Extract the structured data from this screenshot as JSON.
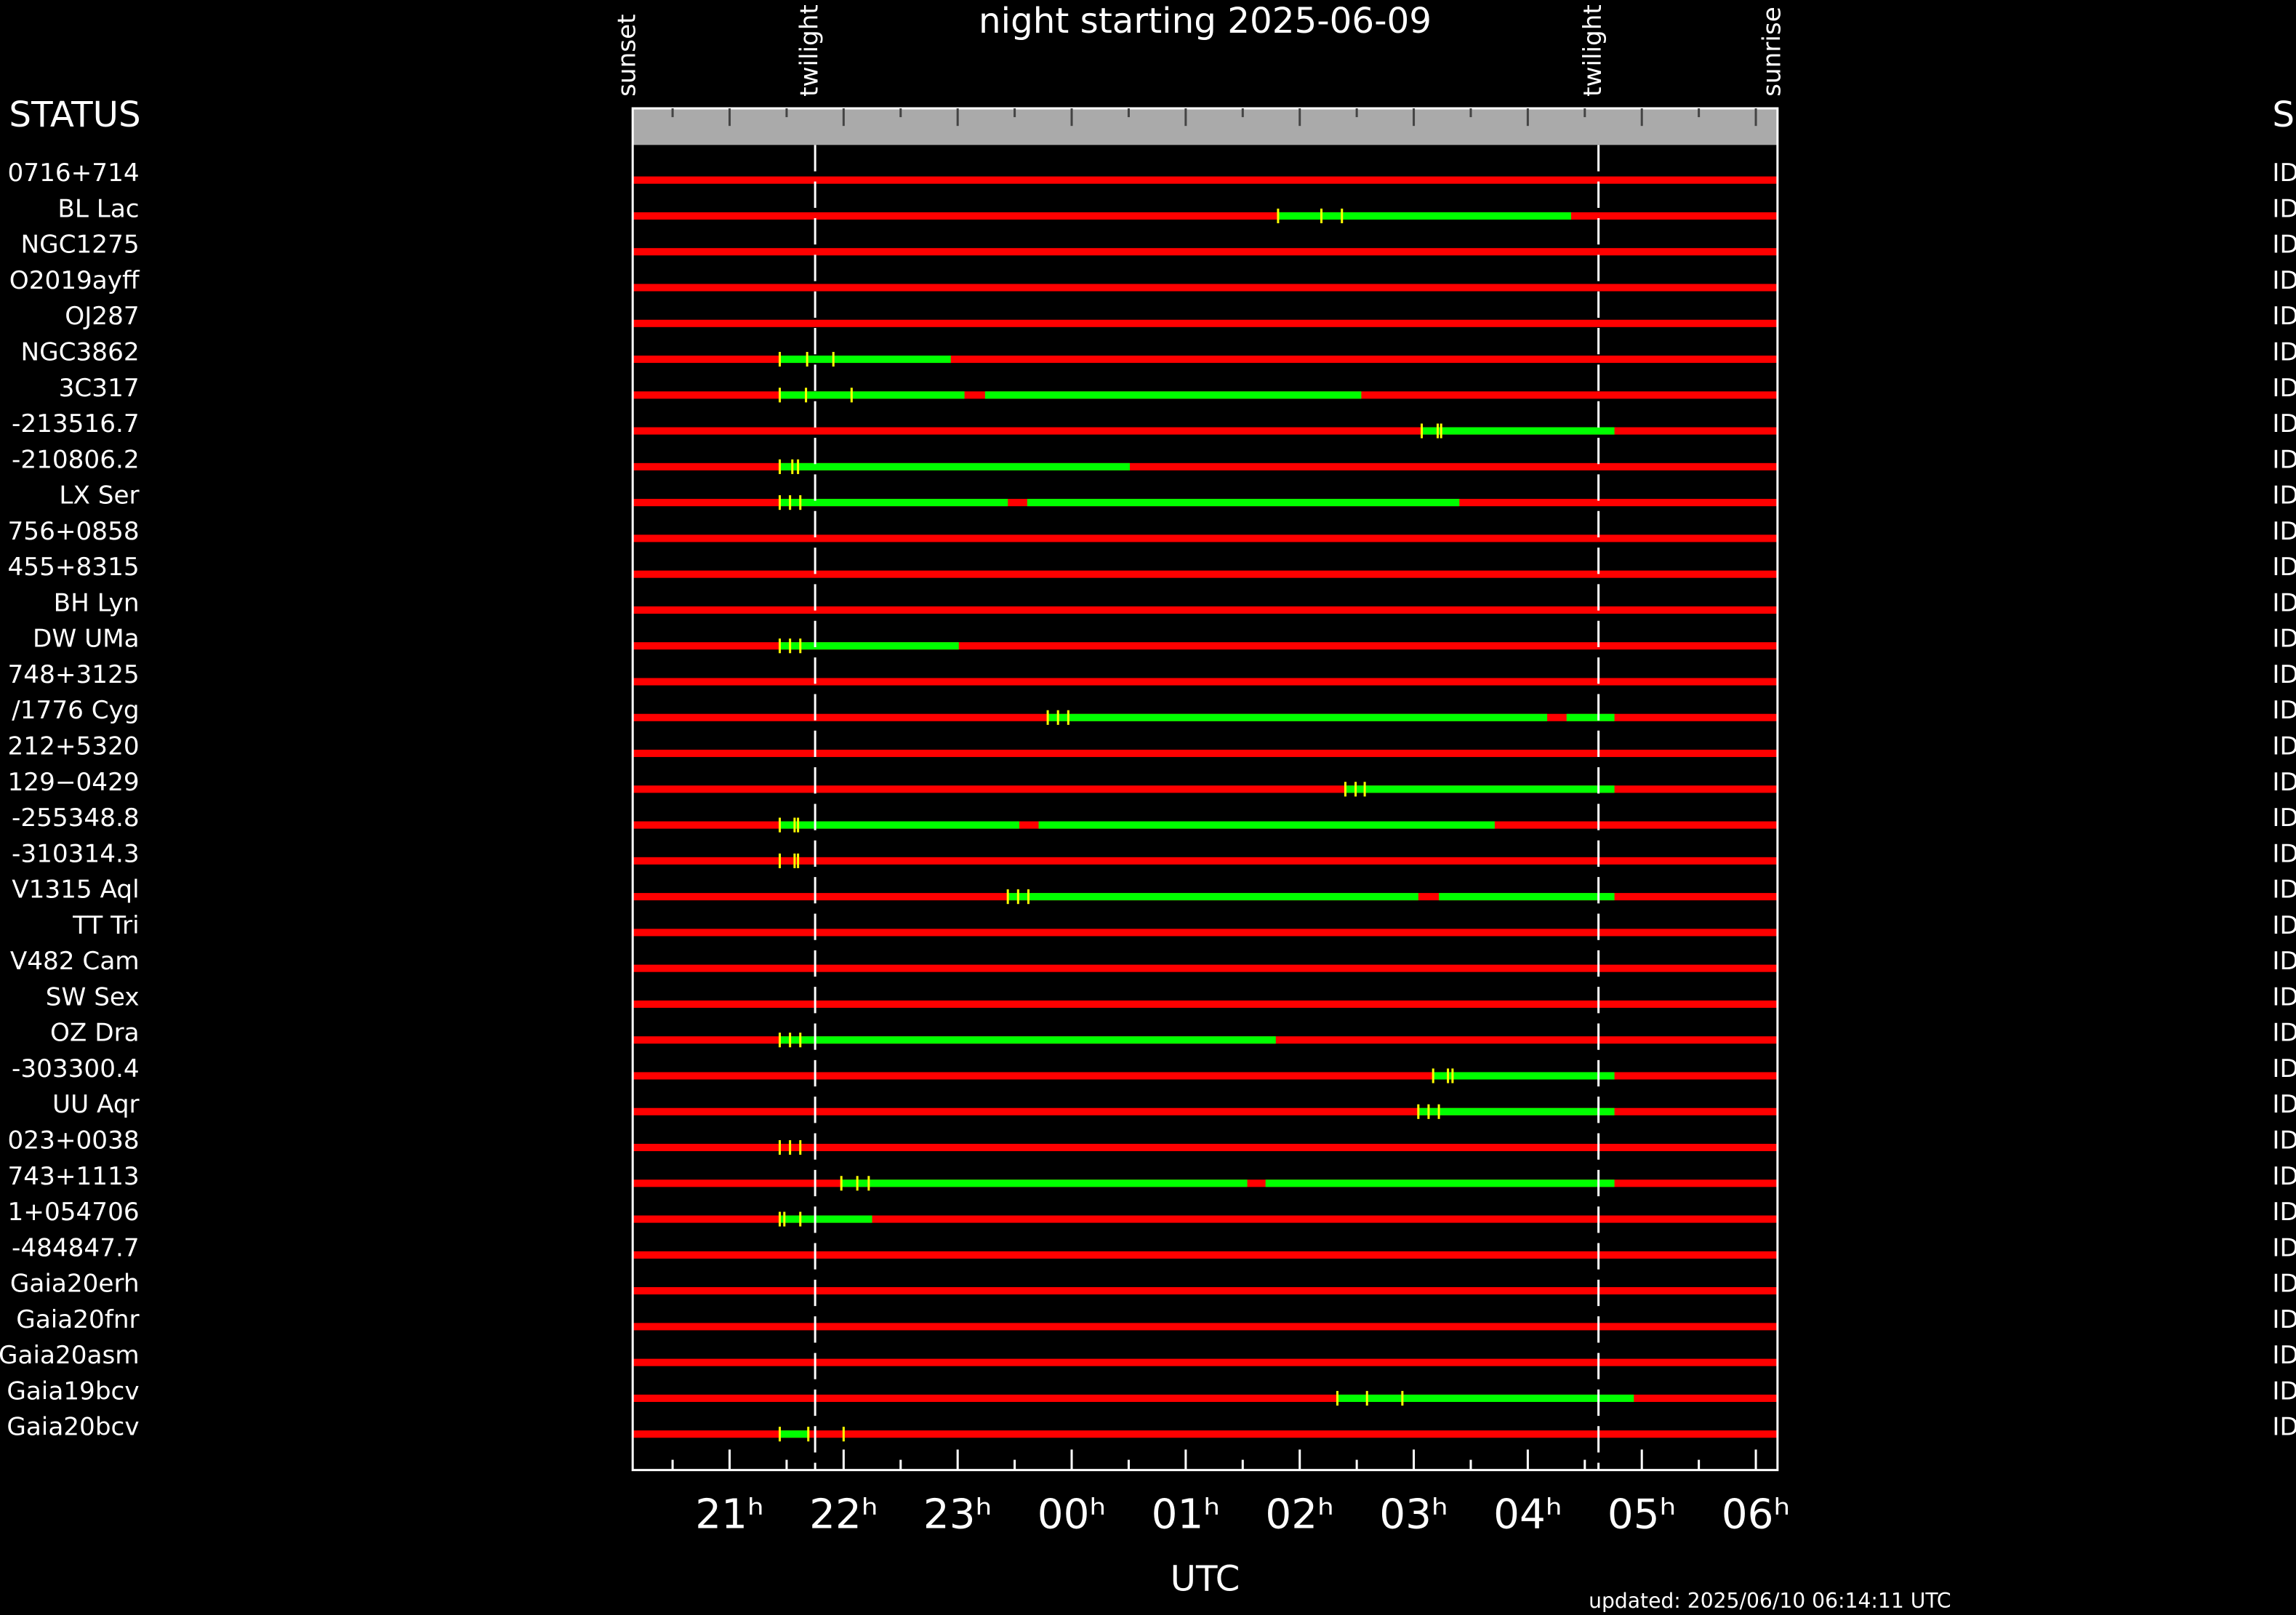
{
  "chart_data": {
    "type": "timeline",
    "title": "night starting 2025-06-09",
    "xlabel": "UTC",
    "updated": "updated: 2025/06/10 06:14:11 UTC",
    "left_header": "STATUS",
    "right_header": "S",
    "xlim": [
      20.15,
      30.19
    ],
    "xticks": [
      {
        "value": 21,
        "label": "21ʰ"
      },
      {
        "value": 22,
        "label": "22ʰ"
      },
      {
        "value": 23,
        "label": "23ʰ"
      },
      {
        "value": 24,
        "label": "00ʰ"
      },
      {
        "value": 25,
        "label": "01ʰ"
      },
      {
        "value": 26,
        "label": "02ʰ"
      },
      {
        "value": 27,
        "label": "03ʰ"
      },
      {
        "value": 28,
        "label": "04ʰ"
      },
      {
        "value": 29,
        "label": "05ʰ"
      },
      {
        "value": 30,
        "label": "06ʰ"
      }
    ],
    "minor_xticks": [
      20.5,
      21.5,
      22.5,
      23.5,
      24.5,
      25.5,
      26.5,
      27.5,
      28.5,
      29.5
    ],
    "events": [
      {
        "label": "sunset",
        "x": 20.15
      },
      {
        "label": "twilight",
        "x": 21.75,
        "dashed": true
      },
      {
        "label": "twilight",
        "x": 28.62,
        "dashed": true
      },
      {
        "label": "sunrise",
        "x": 30.19
      }
    ],
    "base_color": "#ff0000",
    "window_color": "#00ff00",
    "marker_color": "#ffff00",
    "rows": [
      {
        "name": "0716+714",
        "status": "ID",
        "windows": [],
        "markers": []
      },
      {
        "name": "BL Lac",
        "status": "ID",
        "windows": [
          [
            25.81,
            28.38
          ]
        ],
        "markers": [
          25.81,
          26.19,
          26.37
        ]
      },
      {
        "name": "NGC1275",
        "status": "ID",
        "windows": [],
        "markers": []
      },
      {
        "name": "O2019ayff",
        "status": "ID",
        "windows": [],
        "markers": []
      },
      {
        "name": "OJ287",
        "status": "ID",
        "windows": [],
        "markers": []
      },
      {
        "name": "NGC3862",
        "status": "ID",
        "windows": [
          [
            21.44,
            22.94
          ]
        ],
        "markers": [
          21.44,
          21.68,
          21.91
        ]
      },
      {
        "name": "3C317",
        "status": "ID",
        "windows": [
          [
            21.44,
            23.06
          ],
          [
            23.24,
            26.54
          ]
        ],
        "markers": [
          21.44,
          21.67,
          22.07
        ]
      },
      {
        "name": "-213516.7",
        "status": "ID",
        "windows": [
          [
            27.07,
            28.76
          ]
        ],
        "markers": [
          27.07,
          27.21,
          27.24
        ]
      },
      {
        "name": "-210806.2",
        "status": "ID",
        "windows": [
          [
            21.44,
            24.51
          ]
        ],
        "markers": [
          21.44,
          21.55,
          21.6
        ]
      },
      {
        "name": "LX Ser",
        "status": "ID",
        "windows": [
          [
            21.44,
            23.44
          ],
          [
            23.61,
            27.4
          ]
        ],
        "markers": [
          21.44,
          21.53,
          21.62
        ]
      },
      {
        "name": "756+0858",
        "status": "ID",
        "windows": [],
        "markers": []
      },
      {
        "name": "455+8315",
        "status": "ID",
        "windows": [],
        "markers": []
      },
      {
        "name": "BH Lyn",
        "status": "ID",
        "windows": [],
        "markers": []
      },
      {
        "name": "DW UMa",
        "status": "ID",
        "windows": [
          [
            21.44,
            23.01
          ]
        ],
        "markers": [
          21.44,
          21.53,
          21.62
        ]
      },
      {
        "name": "748+3125",
        "status": "ID",
        "windows": [],
        "markers": []
      },
      {
        "name": "/1776 Cyg",
        "status": "ID",
        "windows": [
          [
            23.79,
            28.17
          ],
          [
            28.34,
            28.76
          ]
        ],
        "markers": [
          23.79,
          23.88,
          23.97
        ]
      },
      {
        "name": "212+5320",
        "status": "ID",
        "windows": [],
        "markers": []
      },
      {
        "name": "129−0429",
        "status": "ID",
        "windows": [
          [
            26.4,
            28.76
          ]
        ],
        "markers": [
          26.4,
          26.49,
          26.57
        ]
      },
      {
        "name": "-255348.8",
        "status": "ID",
        "windows": [
          [
            21.44,
            23.54
          ],
          [
            23.71,
            27.71
          ]
        ],
        "markers": [
          21.44,
          21.57,
          21.6
        ]
      },
      {
        "name": "-310314.3",
        "status": "ID",
        "windows": [],
        "markers": [
          21.44,
          21.57,
          21.6
        ]
      },
      {
        "name": "V1315 Aql",
        "status": "ID",
        "windows": [
          [
            23.44,
            27.04
          ],
          [
            27.22,
            28.76
          ]
        ],
        "markers": [
          23.44,
          23.53,
          23.62
        ]
      },
      {
        "name": "TT Tri",
        "status": "ID",
        "windows": [],
        "markers": []
      },
      {
        "name": "V482 Cam",
        "status": "ID",
        "windows": [],
        "markers": []
      },
      {
        "name": "SW Sex",
        "status": "ID",
        "windows": [],
        "markers": []
      },
      {
        "name": "OZ Dra",
        "status": "ID",
        "windows": [
          [
            21.44,
            25.79
          ]
        ],
        "markers": [
          21.44,
          21.53,
          21.62
        ]
      },
      {
        "name": "-303300.4",
        "status": "ID",
        "windows": [
          [
            27.17,
            28.76
          ]
        ],
        "markers": [
          27.17,
          27.3,
          27.34
        ]
      },
      {
        "name": "UU Aqr",
        "status": "ID",
        "windows": [
          [
            27.04,
            28.76
          ]
        ],
        "markers": [
          27.04,
          27.13,
          27.22
        ]
      },
      {
        "name": "023+0038",
        "status": "ID",
        "windows": [],
        "markers": [
          21.44,
          21.53,
          21.62
        ]
      },
      {
        "name": "743+1113",
        "status": "ID",
        "windows": [
          [
            21.98,
            25.54
          ],
          [
            25.7,
            28.76
          ]
        ],
        "markers": [
          21.98,
          22.12,
          22.22
        ]
      },
      {
        "name": "1+054706",
        "status": "ID",
        "windows": [
          [
            21.44,
            22.25
          ]
        ],
        "markers": [
          21.44,
          21.48,
          21.62
        ]
      },
      {
        "name": "-484847.7",
        "status": "ID",
        "windows": [],
        "markers": []
      },
      {
        "name": "Gaia20erh",
        "status": "ID",
        "windows": [],
        "markers": []
      },
      {
        "name": "Gaia20fnr",
        "status": "ID",
        "windows": [],
        "markers": []
      },
      {
        "name": "Gaia20asm",
        "status": "ID",
        "windows": [],
        "markers": []
      },
      {
        "name": "Gaia19bcv",
        "status": "ID",
        "windows": [
          [
            26.33,
            28.93
          ]
        ],
        "markers": [
          26.33,
          26.59,
          26.9
        ]
      },
      {
        "name": "Gaia20bcv",
        "status": "ID",
        "windows": [
          [
            21.44,
            21.69
          ]
        ],
        "markers": [
          21.44,
          21.69,
          22.0
        ]
      }
    ]
  }
}
